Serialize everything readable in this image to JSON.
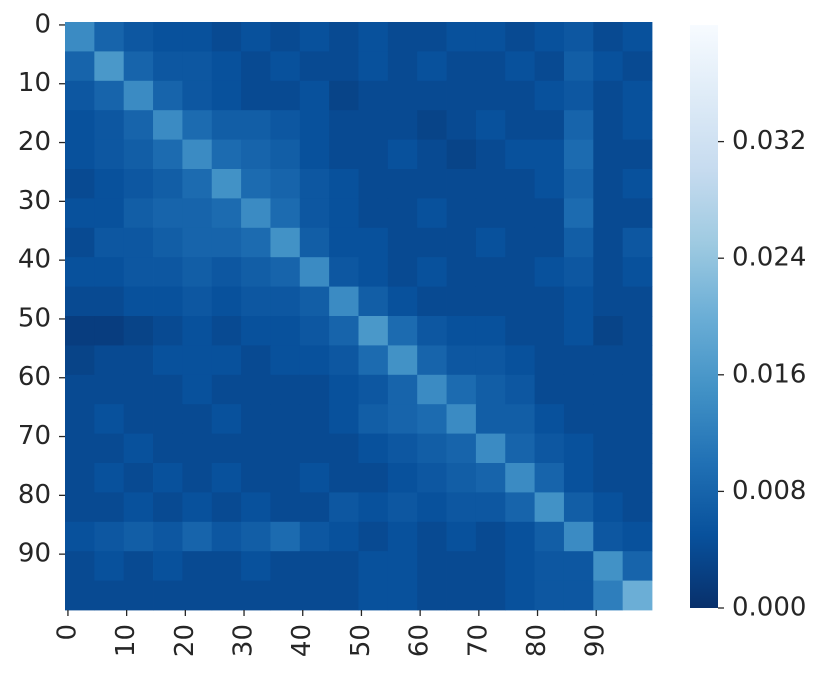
{
  "chart_data": {
    "type": "heatmap",
    "xbins": [
      0,
      5,
      10,
      15,
      20,
      25,
      30,
      35,
      40,
      45,
      50,
      55,
      60,
      65,
      70,
      75,
      80,
      85,
      90,
      95,
      100
    ],
    "ybins": [
      0,
      5,
      10,
      15,
      20,
      25,
      30,
      35,
      40,
      45,
      50,
      55,
      60,
      65,
      70,
      75,
      80,
      85,
      90,
      95,
      100
    ],
    "xlim": [
      0,
      100
    ],
    "ylim": [
      0,
      100
    ],
    "xticks": [
      {
        "value": 0.5,
        "label": "0"
      },
      {
        "value": 10.5,
        "label": "10"
      },
      {
        "value": 20.5,
        "label": "20"
      },
      {
        "value": 30.5,
        "label": "30"
      },
      {
        "value": 40.5,
        "label": "40"
      },
      {
        "value": 50.5,
        "label": "50"
      },
      {
        "value": 60.5,
        "label": "60"
      },
      {
        "value": 70.5,
        "label": "70"
      },
      {
        "value": 80.5,
        "label": "80"
      },
      {
        "value": 90.5,
        "label": "90"
      }
    ],
    "yticks": [
      {
        "value": 0.5,
        "label": "0"
      },
      {
        "value": 10.5,
        "label": "10"
      },
      {
        "value": 20.5,
        "label": "20"
      },
      {
        "value": 30.5,
        "label": "30"
      },
      {
        "value": 40.5,
        "label": "40"
      },
      {
        "value": 50.5,
        "label": "50"
      },
      {
        "value": 60.5,
        "label": "60"
      },
      {
        "value": 70.5,
        "label": "70"
      },
      {
        "value": 80.5,
        "label": "80"
      },
      {
        "value": 90.5,
        "label": "90"
      }
    ],
    "clim": [
      0,
      0.04
    ],
    "cticks": [
      {
        "value": 0,
        "label": "0.000"
      },
      {
        "value": 0.008,
        "label": "0.008"
      },
      {
        "value": 0.016,
        "label": "0.016"
      },
      {
        "value": 0.024,
        "label": "0.024"
      },
      {
        "value": 0.032,
        "label": "0.032"
      }
    ],
    "colormap": [
      "#08306b",
      "#08519c",
      "#2171b5",
      "#4292c6",
      "#6baed6",
      "#9ecae1",
      "#c6dbef",
      "#deebf7",
      "#f7fbff"
    ],
    "z": [
      [
        0.014,
        0.008,
        0.006,
        0.005,
        0.005,
        0.004,
        0.005,
        0.004,
        0.005,
        0.004,
        0.005,
        0.004,
        0.004,
        0.005,
        0.005,
        0.004,
        0.005,
        0.006,
        0.004,
        0.005
      ],
      [
        0.008,
        0.016,
        0.008,
        0.006,
        0.006,
        0.005,
        0.004,
        0.005,
        0.004,
        0.004,
        0.005,
        0.004,
        0.005,
        0.004,
        0.004,
        0.005,
        0.004,
        0.007,
        0.005,
        0.004
      ],
      [
        0.006,
        0.008,
        0.014,
        0.008,
        0.006,
        0.005,
        0.004,
        0.004,
        0.005,
        0.003,
        0.004,
        0.004,
        0.004,
        0.004,
        0.004,
        0.004,
        0.005,
        0.006,
        0.004,
        0.005
      ],
      [
        0.005,
        0.006,
        0.008,
        0.014,
        0.009,
        0.007,
        0.007,
        0.006,
        0.005,
        0.004,
        0.004,
        0.004,
        0.003,
        0.004,
        0.005,
        0.004,
        0.004,
        0.008,
        0.004,
        0.005
      ],
      [
        0.005,
        0.006,
        0.007,
        0.009,
        0.014,
        0.009,
        0.008,
        0.007,
        0.005,
        0.004,
        0.004,
        0.005,
        0.004,
        0.003,
        0.004,
        0.005,
        0.005,
        0.009,
        0.004,
        0.004
      ],
      [
        0.004,
        0.005,
        0.006,
        0.007,
        0.009,
        0.015,
        0.009,
        0.008,
        0.006,
        0.005,
        0.004,
        0.004,
        0.004,
        0.004,
        0.004,
        0.004,
        0.005,
        0.008,
        0.004,
        0.005
      ],
      [
        0.005,
        0.005,
        0.007,
        0.008,
        0.008,
        0.009,
        0.014,
        0.009,
        0.006,
        0.005,
        0.004,
        0.004,
        0.005,
        0.004,
        0.004,
        0.004,
        0.004,
        0.009,
        0.004,
        0.004
      ],
      [
        0.004,
        0.006,
        0.006,
        0.007,
        0.008,
        0.008,
        0.009,
        0.015,
        0.007,
        0.005,
        0.005,
        0.004,
        0.004,
        0.004,
        0.005,
        0.004,
        0.004,
        0.007,
        0.004,
        0.006
      ],
      [
        0.005,
        0.005,
        0.006,
        0.006,
        0.007,
        0.006,
        0.007,
        0.008,
        0.014,
        0.006,
        0.005,
        0.004,
        0.005,
        0.004,
        0.004,
        0.004,
        0.005,
        0.006,
        0.004,
        0.005
      ],
      [
        0.004,
        0.004,
        0.005,
        0.005,
        0.006,
        0.005,
        0.006,
        0.006,
        0.007,
        0.014,
        0.007,
        0.005,
        0.004,
        0.004,
        0.004,
        0.004,
        0.004,
        0.005,
        0.004,
        0.004
      ],
      [
        0.002,
        0.002,
        0.003,
        0.004,
        0.005,
        0.004,
        0.005,
        0.005,
        0.006,
        0.008,
        0.016,
        0.009,
        0.006,
        0.005,
        0.005,
        0.004,
        0.004,
        0.005,
        0.003,
        0.004
      ],
      [
        0.003,
        0.004,
        0.004,
        0.005,
        0.005,
        0.005,
        0.004,
        0.005,
        0.005,
        0.006,
        0.009,
        0.015,
        0.008,
        0.006,
        0.006,
        0.005,
        0.004,
        0.004,
        0.004,
        0.004
      ],
      [
        0.004,
        0.004,
        0.004,
        0.004,
        0.005,
        0.004,
        0.004,
        0.004,
        0.004,
        0.005,
        0.006,
        0.008,
        0.014,
        0.009,
        0.007,
        0.006,
        0.004,
        0.004,
        0.004,
        0.004
      ],
      [
        0.004,
        0.005,
        0.004,
        0.004,
        0.004,
        0.005,
        0.004,
        0.004,
        0.004,
        0.005,
        0.007,
        0.008,
        0.009,
        0.014,
        0.007,
        0.007,
        0.005,
        0.004,
        0.004,
        0.004
      ],
      [
        0.004,
        0.004,
        0.005,
        0.004,
        0.004,
        0.004,
        0.004,
        0.004,
        0.004,
        0.004,
        0.005,
        0.006,
        0.007,
        0.008,
        0.014,
        0.008,
        0.006,
        0.005,
        0.004,
        0.004
      ],
      [
        0.004,
        0.005,
        0.004,
        0.005,
        0.004,
        0.005,
        0.004,
        0.004,
        0.005,
        0.004,
        0.004,
        0.005,
        0.006,
        0.007,
        0.008,
        0.014,
        0.008,
        0.005,
        0.004,
        0.004
      ],
      [
        0.004,
        0.004,
        0.005,
        0.004,
        0.005,
        0.004,
        0.005,
        0.004,
        0.004,
        0.006,
        0.005,
        0.006,
        0.005,
        0.006,
        0.006,
        0.008,
        0.015,
        0.007,
        0.005,
        0.004
      ],
      [
        0.005,
        0.006,
        0.007,
        0.006,
        0.008,
        0.006,
        0.007,
        0.009,
        0.006,
        0.005,
        0.004,
        0.005,
        0.004,
        0.005,
        0.004,
        0.005,
        0.007,
        0.014,
        0.006,
        0.005
      ],
      [
        0.004,
        0.005,
        0.004,
        0.005,
        0.004,
        0.004,
        0.005,
        0.004,
        0.004,
        0.004,
        0.005,
        0.005,
        0.004,
        0.004,
        0.004,
        0.005,
        0.006,
        0.006,
        0.015,
        0.008
      ],
      [
        0.004,
        0.004,
        0.004,
        0.004,
        0.004,
        0.004,
        0.004,
        0.004,
        0.004,
        0.004,
        0.005,
        0.005,
        0.004,
        0.004,
        0.004,
        0.005,
        0.006,
        0.006,
        0.012,
        0.02
      ]
    ]
  }
}
